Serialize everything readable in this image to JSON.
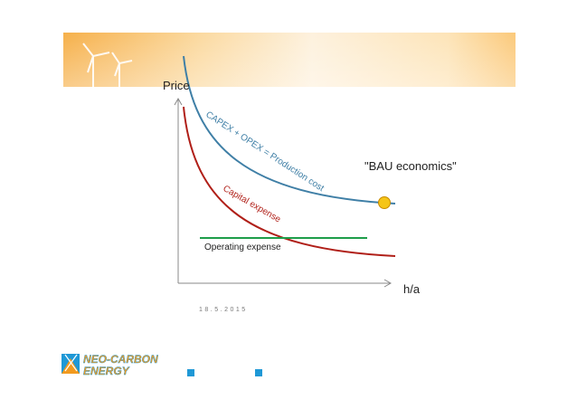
{
  "diagram": {
    "y_axis_label": "Price",
    "x_axis_label": "h/a",
    "curve_upper_label": "CAPEX + OPEX = Production cost",
    "curve_lower_label": "Capital expense",
    "line_label": "Operating expense",
    "annotation": "\"BAU economics\"",
    "date": "18.5.2015"
  },
  "logo": {
    "line1": "NEO-CARBON",
    "line2": "ENERGY"
  },
  "colors": {
    "production_cost_curve": "#3f7fa6",
    "capital_expense_curve": "#b01f18",
    "operating_expense_line": "#1e9e4a",
    "marker": "#f5c518",
    "banner": "#f4a73a",
    "logo_orange": "#f29a1f",
    "logo_blue": "#1f98d6"
  },
  "icons": [
    "wind-turbine-icon",
    "bullet-square-icon"
  ]
}
